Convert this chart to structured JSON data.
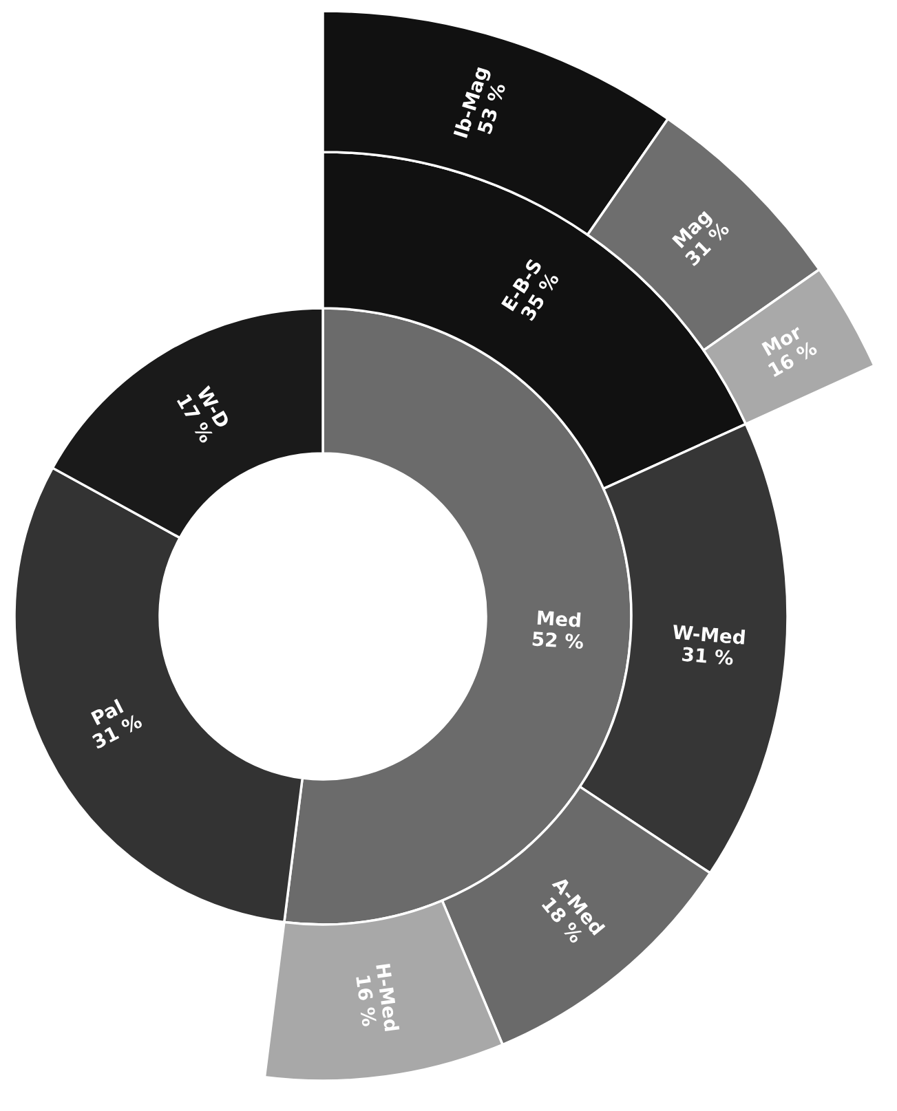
{
  "chart_data": {
    "type": "other",
    "data_labels": true,
    "categories": [
      "Med",
      "Pal",
      "W-D",
      "E-B-S",
      "W-Med",
      "A-Med",
      "H-Med",
      "Ib-Mag",
      "Mag",
      "Mor"
    ],
    "values": [
      52,
      31,
      17,
      35,
      31,
      18,
      16,
      53,
      31,
      16
    ],
    "value_labels": [
      "52 %",
      "31 %",
      "17 %",
      "35 %",
      "31 %",
      "18 %",
      "16 %",
      "53 %",
      "31 %",
      "16 %"
    ],
    "colors": [
      "#6b6b6b",
      "#333333",
      "#1a1a1a",
      "#111111",
      "#363636",
      "#6a6a6a",
      "#a8a8a8",
      "#111111",
      "#6e6e6e",
      "#a9a9a9"
    ]
  }
}
